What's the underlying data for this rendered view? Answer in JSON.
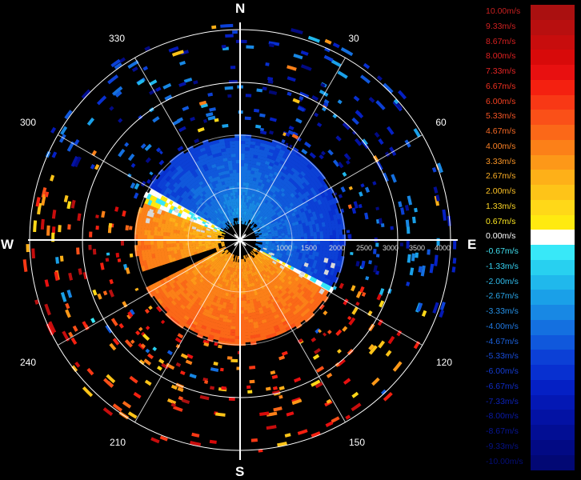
{
  "compass": {
    "north": "N",
    "south": "S",
    "east": "E",
    "west": "W"
  },
  "azimuth_labels": [
    "30",
    "60",
    "120",
    "150",
    "210",
    "240",
    "300",
    "330"
  ],
  "range_labels": [
    "1000",
    "1500",
    "2000",
    "2500",
    "3000",
    "3500",
    "4000"
  ],
  "colorbar": {
    "levels": [
      {
        "label": "10.00m/s",
        "color": "#aa1010",
        "text_color": "#c82020"
      },
      {
        "label": "9.33m/s",
        "color": "#b80f0f",
        "text_color": "#d02020"
      },
      {
        "label": "8.67m/s",
        "color": "#c80d0d",
        "text_color": "#d82020"
      },
      {
        "label": "8.00m/s",
        "color": "#d80a0a",
        "text_color": "#e02020"
      },
      {
        "label": "7.33m/s",
        "color": "#e81010",
        "text_color": "#e82525"
      },
      {
        "label": "6.67m/s",
        "color": "#f42010",
        "text_color": "#f03020"
      },
      {
        "label": "6.00m/s",
        "color": "#f83815",
        "text_color": "#f54020"
      },
      {
        "label": "5.33m/s",
        "color": "#fa5018",
        "text_color": "#f85525"
      },
      {
        "label": "4.67m/s",
        "color": "#fb6818",
        "text_color": "#f86a25"
      },
      {
        "label": "4.00m/s",
        "color": "#fc8018",
        "text_color": "#fa8025"
      },
      {
        "label": "3.33m/s",
        "color": "#fd9818",
        "text_color": "#fb9525"
      },
      {
        "label": "2.67m/s",
        "color": "#feb018",
        "text_color": "#fcae25"
      },
      {
        "label": "2.00m/s",
        "color": "#fec418",
        "text_color": "#fdc225"
      },
      {
        "label": "1.33m/s",
        "color": "#ffd818",
        "text_color": "#fed625"
      },
      {
        "label": "0.67m/s",
        "color": "#ffea10",
        "text_color": "#ffe820"
      },
      {
        "label": "0.00m/s",
        "color": "#ffffff",
        "text_color": "#ffffff"
      },
      {
        "label": "-0.67m/s",
        "color": "#38e8f8",
        "text_color": "#40e0f0"
      },
      {
        "label": "-1.33m/s",
        "color": "#28d0f0",
        "text_color": "#35d0f0"
      },
      {
        "label": "-2.00m/s",
        "color": "#20b8ec",
        "text_color": "#30bcec"
      },
      {
        "label": "-2.67m/s",
        "color": "#1aa0e8",
        "text_color": "#2aa6ea"
      },
      {
        "label": "-3.33m/s",
        "color": "#1888e4",
        "text_color": "#2590e6"
      },
      {
        "label": "-4.00m/s",
        "color": "#1470e0",
        "text_color": "#2078e2"
      },
      {
        "label": "-4.67m/s",
        "color": "#1058dc",
        "text_color": "#1c62de"
      },
      {
        "label": "-5.33m/s",
        "color": "#0c40d6",
        "text_color": "#184cd8"
      },
      {
        "label": "-6.00m/s",
        "color": "#0830d0",
        "text_color": "#143cd2"
      },
      {
        "label": "-6.67m/s",
        "color": "#0520c4",
        "text_color": "#102cc6"
      },
      {
        "label": "-7.33m/s",
        "color": "#0418b4",
        "text_color": "#0c22b6"
      },
      {
        "label": "-8.00m/s",
        "color": "#0312a4",
        "text_color": "#0a1aa6"
      },
      {
        "label": "-8.67m/s",
        "color": "#020e94",
        "text_color": "#081696"
      },
      {
        "label": "-9.33m/s",
        "color": "#020a84",
        "text_color": "#061286"
      },
      {
        "label": "-10.00m/s",
        "color": "#020874",
        "text_color": "#050e76"
      }
    ]
  }
}
